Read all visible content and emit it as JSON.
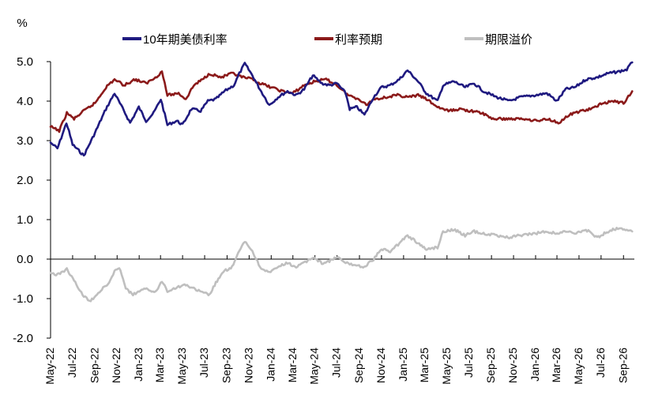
{
  "chart_data": {
    "type": "line",
    "y_unit": "%",
    "ylim": [
      -2.0,
      5.0
    ],
    "y_ticks": [
      "5.0",
      "4.0",
      "3.0",
      "2.0",
      "1.0",
      "0.0",
      "-1.0",
      "-2.0"
    ],
    "y_tick_values": [
      5,
      4,
      3,
      2,
      1,
      0,
      -1,
      -2
    ],
    "negative_tick_color": "#c00000",
    "grid": false,
    "legend_position": "top",
    "x_ticks": [
      "May-22",
      "Jul-22",
      "Sep-22",
      "Nov-22",
      "Jan-23",
      "Mar-23",
      "May-23",
      "Jul-23",
      "Sep-23",
      "Nov-23",
      "Jan-24",
      "Mar-24",
      "May-24",
      "Jul-24",
      "Sep-24",
      "Nov-24",
      "Jan-25",
      "Mar-25",
      "May-25",
      "Jul-25",
      "Sep-25",
      "Nov-25",
      "Jan-26",
      "Mar-26",
      "May-26",
      "Jul-26",
      "Sep-26"
    ],
    "x_tick_dates": [
      "2022-05-01",
      "2022-07-01",
      "2022-09-01",
      "2022-11-01",
      "2023-01-01",
      "2023-03-01",
      "2023-05-01",
      "2023-07-01",
      "2023-09-01",
      "2023-11-01",
      "2024-01-01",
      "2024-03-01",
      "2024-05-01",
      "2024-07-01",
      "2024-09-01",
      "2024-11-01",
      "2025-01-01",
      "2025-03-01",
      "2025-05-01",
      "2025-07-01",
      "2025-09-01",
      "2025-11-01",
      "2026-01-01",
      "2026-03-01",
      "2026-05-01",
      "2026-07-01",
      "2026-09-01"
    ],
    "x_range": [
      "2022-05-01",
      "2026-10-01"
    ],
    "series": [
      {
        "name": "10年期美债利率",
        "color": "#1f1a80",
        "points": [
          [
            "2022-05-01",
            2.95
          ],
          [
            "2022-05-20",
            2.8
          ],
          [
            "2022-06-14",
            3.45
          ],
          [
            "2022-07-01",
            2.9
          ],
          [
            "2022-08-01",
            2.62
          ],
          [
            "2022-09-01",
            3.2
          ],
          [
            "2022-10-01",
            3.8
          ],
          [
            "2022-10-25",
            4.2
          ],
          [
            "2022-11-20",
            3.75
          ],
          [
            "2022-12-07",
            3.45
          ],
          [
            "2022-12-31",
            3.85
          ],
          [
            "2023-01-20",
            3.5
          ],
          [
            "2023-02-10",
            3.7
          ],
          [
            "2023-03-02",
            4.05
          ],
          [
            "2023-03-20",
            3.4
          ],
          [
            "2023-04-15",
            3.5
          ],
          [
            "2023-05-01",
            3.4
          ],
          [
            "2023-05-25",
            3.8
          ],
          [
            "2023-06-20",
            3.75
          ],
          [
            "2023-07-10",
            4.0
          ],
          [
            "2023-08-01",
            4.05
          ],
          [
            "2023-08-25",
            4.25
          ],
          [
            "2023-09-20",
            4.4
          ],
          [
            "2023-10-05",
            4.7
          ],
          [
            "2023-10-20",
            4.95
          ],
          [
            "2023-11-10",
            4.65
          ],
          [
            "2023-12-01",
            4.3
          ],
          [
            "2023-12-27",
            3.9
          ],
          [
            "2024-01-20",
            4.1
          ],
          [
            "2024-02-15",
            4.25
          ],
          [
            "2024-03-10",
            4.15
          ],
          [
            "2024-04-01",
            4.3
          ],
          [
            "2024-04-25",
            4.65
          ],
          [
            "2024-05-20",
            4.45
          ],
          [
            "2024-06-10",
            4.4
          ],
          [
            "2024-07-01",
            4.45
          ],
          [
            "2024-07-25",
            4.2
          ],
          [
            "2024-08-05",
            3.8
          ],
          [
            "2024-08-25",
            3.85
          ],
          [
            "2024-09-15",
            3.65
          ],
          [
            "2024-10-10",
            4.1
          ],
          [
            "2024-11-01",
            4.35
          ],
          [
            "2024-11-25",
            4.4
          ],
          [
            "2024-12-20",
            4.55
          ],
          [
            "2025-01-12",
            4.78
          ],
          [
            "2025-02-10",
            4.5
          ],
          [
            "2025-03-05",
            4.2
          ],
          [
            "2025-04-05",
            4.0
          ],
          [
            "2025-04-20",
            4.4
          ],
          [
            "2025-05-20",
            4.5
          ],
          [
            "2025-06-20",
            4.35
          ],
          [
            "2025-07-15",
            4.45
          ],
          [
            "2025-08-10",
            4.25
          ],
          [
            "2025-09-15",
            4.1
          ],
          [
            "2025-10-20",
            4.0
          ],
          [
            "2025-11-20",
            4.1
          ],
          [
            "2026-01-01",
            4.15
          ],
          [
            "2026-02-01",
            4.2
          ],
          [
            "2026-03-01",
            4.0
          ],
          [
            "2026-03-25",
            4.3
          ],
          [
            "2026-04-20",
            4.35
          ],
          [
            "2026-05-20",
            4.55
          ],
          [
            "2026-06-20",
            4.6
          ],
          [
            "2026-07-20",
            4.7
          ],
          [
            "2026-08-20",
            4.75
          ],
          [
            "2026-09-10",
            4.8
          ],
          [
            "2026-09-25",
            4.98
          ]
        ]
      },
      {
        "name": "利率预期",
        "color": "#8b1a1a",
        "points": [
          [
            "2022-05-01",
            3.35
          ],
          [
            "2022-05-25",
            3.25
          ],
          [
            "2022-06-15",
            3.7
          ],
          [
            "2022-07-05",
            3.55
          ],
          [
            "2022-08-01",
            3.75
          ],
          [
            "2022-09-01",
            3.95
          ],
          [
            "2022-10-01",
            4.35
          ],
          [
            "2022-10-25",
            4.55
          ],
          [
            "2022-11-20",
            4.4
          ],
          [
            "2022-12-20",
            4.55
          ],
          [
            "2023-01-20",
            4.45
          ],
          [
            "2023-02-15",
            4.6
          ],
          [
            "2023-03-05",
            4.75
          ],
          [
            "2023-03-20",
            4.15
          ],
          [
            "2023-04-20",
            4.2
          ],
          [
            "2023-05-10",
            4.05
          ],
          [
            "2023-06-01",
            4.4
          ],
          [
            "2023-06-25",
            4.55
          ],
          [
            "2023-07-15",
            4.7
          ],
          [
            "2023-08-15",
            4.6
          ],
          [
            "2023-09-15",
            4.7
          ],
          [
            "2023-10-15",
            4.6
          ],
          [
            "2023-11-10",
            4.55
          ],
          [
            "2023-12-01",
            4.45
          ],
          [
            "2024-01-01",
            4.35
          ],
          [
            "2024-02-01",
            4.25
          ],
          [
            "2024-03-01",
            4.2
          ],
          [
            "2024-04-01",
            4.4
          ],
          [
            "2024-05-01",
            4.5
          ],
          [
            "2024-06-01",
            4.55
          ],
          [
            "2024-07-01",
            4.4
          ],
          [
            "2024-08-01",
            4.15
          ],
          [
            "2024-09-01",
            4.05
          ],
          [
            "2024-09-20",
            3.9
          ],
          [
            "2024-10-10",
            4.05
          ],
          [
            "2024-11-15",
            4.1
          ],
          [
            "2024-12-15",
            4.15
          ],
          [
            "2025-01-15",
            4.1
          ],
          [
            "2025-02-10",
            4.15
          ],
          [
            "2025-03-05",
            4.05
          ],
          [
            "2025-04-05",
            3.85
          ],
          [
            "2025-05-05",
            3.75
          ],
          [
            "2025-06-05",
            3.8
          ],
          [
            "2025-07-05",
            3.75
          ],
          [
            "2025-08-05",
            3.7
          ],
          [
            "2025-09-05",
            3.55
          ],
          [
            "2025-10-05",
            3.55
          ],
          [
            "2025-11-05",
            3.55
          ],
          [
            "2025-12-05",
            3.55
          ],
          [
            "2026-01-05",
            3.5
          ],
          [
            "2026-02-05",
            3.55
          ],
          [
            "2026-03-05",
            3.45
          ],
          [
            "2026-04-05",
            3.65
          ],
          [
            "2026-05-05",
            3.75
          ],
          [
            "2026-06-05",
            3.8
          ],
          [
            "2026-07-05",
            3.95
          ],
          [
            "2026-08-05",
            4.0
          ],
          [
            "2026-09-01",
            3.95
          ],
          [
            "2026-09-25",
            4.25
          ]
        ]
      },
      {
        "name": "期限溢价",
        "color": "#bfbfbf",
        "points": [
          [
            "2022-05-01",
            -0.35
          ],
          [
            "2022-05-20",
            -0.4
          ],
          [
            "2022-06-15",
            -0.25
          ],
          [
            "2022-07-05",
            -0.55
          ],
          [
            "2022-08-01",
            -0.95
          ],
          [
            "2022-08-20",
            -1.05
          ],
          [
            "2022-09-10",
            -0.85
          ],
          [
            "2022-10-10",
            -0.6
          ],
          [
            "2022-10-25",
            -0.3
          ],
          [
            "2022-11-10",
            -0.25
          ],
          [
            "2022-11-25",
            -0.75
          ],
          [
            "2022-12-15",
            -0.9
          ],
          [
            "2023-01-05",
            -0.8
          ],
          [
            "2023-01-25",
            -0.75
          ],
          [
            "2023-02-15",
            -0.85
          ],
          [
            "2023-03-05",
            -0.55
          ],
          [
            "2023-03-20",
            -0.8
          ],
          [
            "2023-04-20",
            -0.7
          ],
          [
            "2023-05-10",
            -0.65
          ],
          [
            "2023-06-01",
            -0.75
          ],
          [
            "2023-06-25",
            -0.85
          ],
          [
            "2023-07-15",
            -0.9
          ],
          [
            "2023-08-01",
            -0.6
          ],
          [
            "2023-08-25",
            -0.3
          ],
          [
            "2023-09-15",
            -0.2
          ],
          [
            "2023-10-05",
            0.2
          ],
          [
            "2023-10-20",
            0.45
          ],
          [
            "2023-11-10",
            0.2
          ],
          [
            "2023-12-01",
            -0.2
          ],
          [
            "2023-12-27",
            -0.35
          ],
          [
            "2024-01-20",
            -0.2
          ],
          [
            "2024-02-15",
            -0.1
          ],
          [
            "2024-03-10",
            -0.2
          ],
          [
            "2024-04-01",
            -0.1
          ],
          [
            "2024-04-25",
            0.05
          ],
          [
            "2024-05-20",
            -0.1
          ],
          [
            "2024-06-10",
            -0.05
          ],
          [
            "2024-07-01",
            0.05
          ],
          [
            "2024-07-25",
            -0.1
          ],
          [
            "2024-08-20",
            -0.15
          ],
          [
            "2024-09-15",
            -0.2
          ],
          [
            "2024-10-10",
            0.0
          ],
          [
            "2024-11-01",
            0.25
          ],
          [
            "2024-11-25",
            0.2
          ],
          [
            "2024-12-20",
            0.4
          ],
          [
            "2025-01-12",
            0.6
          ],
          [
            "2025-02-10",
            0.4
          ],
          [
            "2025-03-05",
            0.25
          ],
          [
            "2025-04-05",
            0.3
          ],
          [
            "2025-04-20",
            0.7
          ],
          [
            "2025-05-20",
            0.75
          ],
          [
            "2025-06-20",
            0.6
          ],
          [
            "2025-07-15",
            0.7
          ],
          [
            "2025-08-10",
            0.65
          ],
          [
            "2025-09-15",
            0.6
          ],
          [
            "2025-10-20",
            0.55
          ],
          [
            "2025-11-20",
            0.6
          ],
          [
            "2026-01-01",
            0.65
          ],
          [
            "2026-02-01",
            0.7
          ],
          [
            "2026-03-01",
            0.65
          ],
          [
            "2026-03-25",
            0.7
          ],
          [
            "2026-04-20",
            0.65
          ],
          [
            "2026-05-20",
            0.75
          ],
          [
            "2026-06-20",
            0.55
          ],
          [
            "2026-07-20",
            0.7
          ],
          [
            "2026-08-20",
            0.8
          ],
          [
            "2026-09-10",
            0.75
          ],
          [
            "2026-09-25",
            0.7
          ]
        ]
      }
    ]
  }
}
